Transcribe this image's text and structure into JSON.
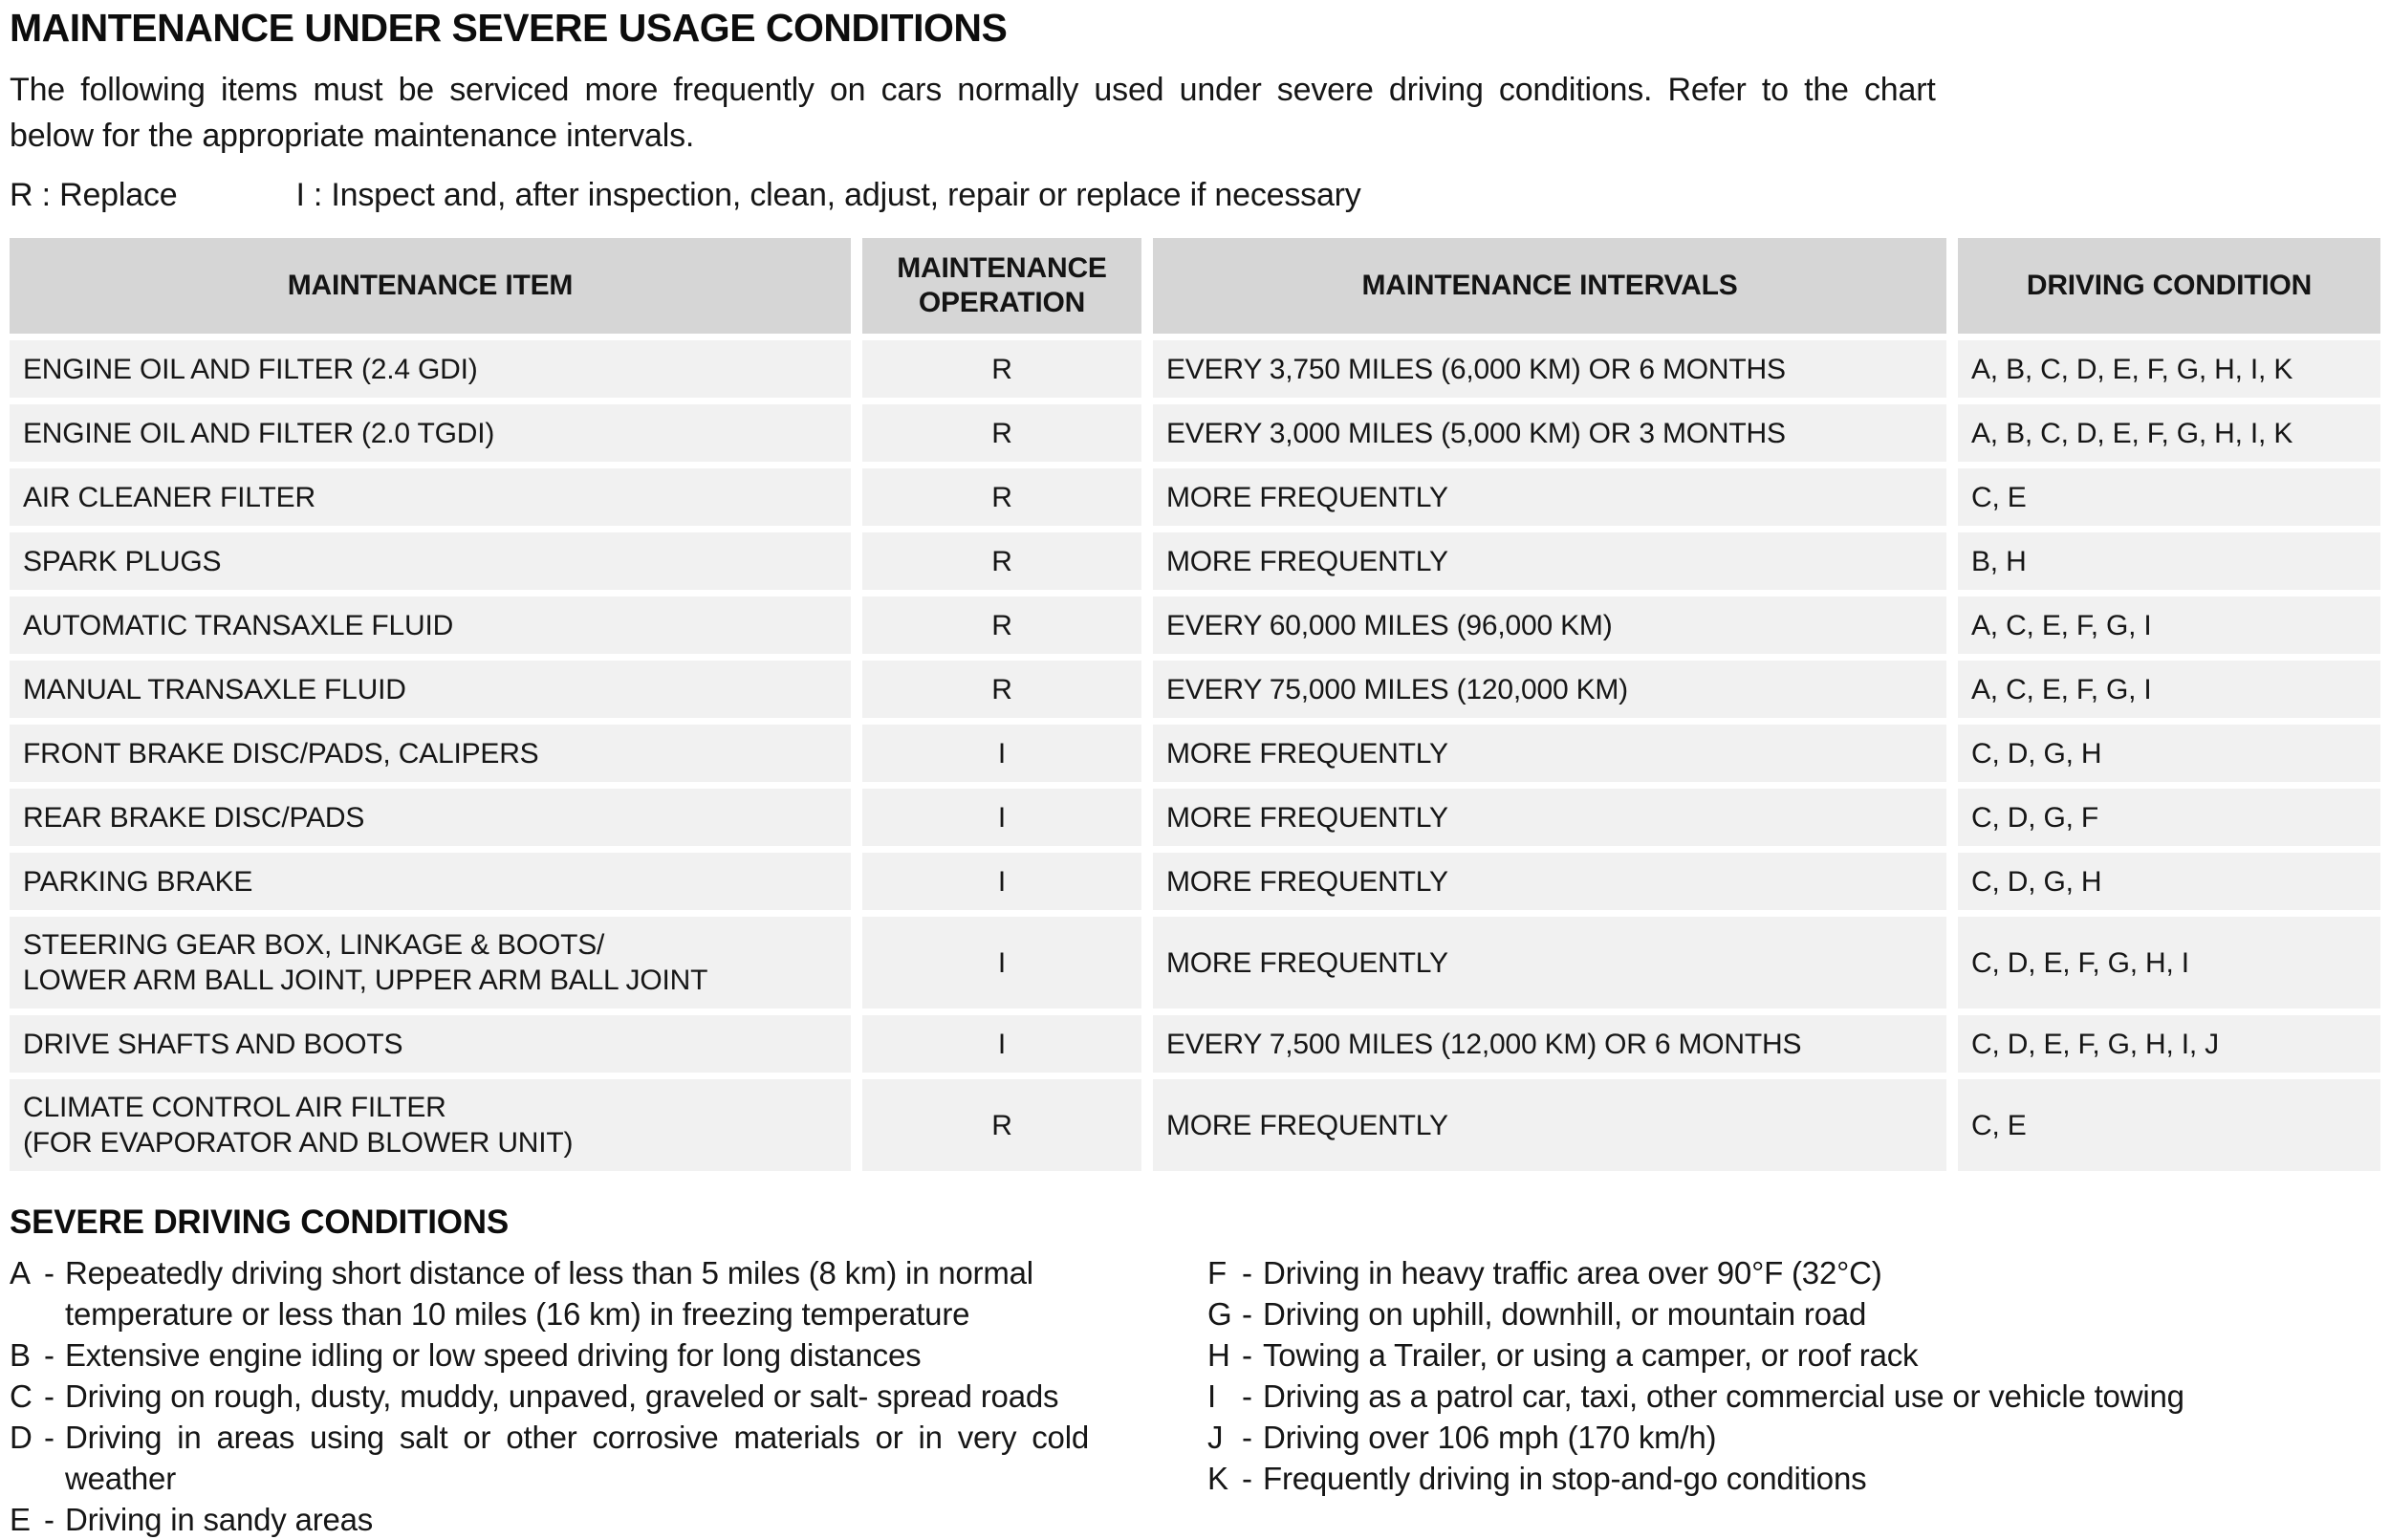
{
  "page": {
    "title": "MAINTENANCE UNDER SEVERE USAGE CONDITIONS",
    "intro_line1": "The following items must be serviced more frequently on cars normally used under severe driving conditions. Refer to the chart",
    "intro_line2": "below for the appropriate maintenance intervals.",
    "legend_replace": "R : Replace",
    "legend_inspect": "I : Inspect and, after inspection, clean, adjust, repair or replace if necessary"
  },
  "colors": {
    "page_background": "#ffffff",
    "table_header_background": "#d6d6d6",
    "table_row_background": "#f1f1f1",
    "text": "#111111"
  },
  "table": {
    "headers": [
      "MAINTENANCE ITEM",
      "MAINTENANCE OPERATION",
      "MAINTENANCE INTERVALS",
      "DRIVING CONDITION"
    ],
    "rows": [
      {
        "item": "ENGINE OIL AND FILTER (2.4 GDI)",
        "operation": "R",
        "interval": "EVERY 3,750 MILES (6,000 KM) OR 6 MONTHS",
        "condition": "A, B, C, D, E, F, G, H, I, K"
      },
      {
        "item": "ENGINE OIL AND FILTER (2.0 TGDI)",
        "operation": "R",
        "interval": "EVERY 3,000 MILES (5,000 KM) OR 3 MONTHS",
        "condition": "A, B, C, D, E, F, G, H, I, K"
      },
      {
        "item": "AIR CLEANER FILTER",
        "operation": "R",
        "interval": "MORE FREQUENTLY",
        "condition": "C, E"
      },
      {
        "item": "SPARK PLUGS",
        "operation": "R",
        "interval": "MORE FREQUENTLY",
        "condition": "B, H"
      },
      {
        "item": "AUTOMATIC TRANSAXLE FLUID",
        "operation": "R",
        "interval": "EVERY 60,000 MILES (96,000 KM)",
        "condition": "A, C, E, F, G, I"
      },
      {
        "item": "MANUAL TRANSAXLE FLUID",
        "operation": "R",
        "interval": "EVERY 75,000 MILES (120,000 KM)",
        "condition": "A, C, E, F, G, I"
      },
      {
        "item": "FRONT BRAKE DISC/PADS, CALIPERS",
        "operation": "I",
        "interval": "MORE FREQUENTLY",
        "condition": "C, D, G, H"
      },
      {
        "item": "REAR BRAKE DISC/PADS",
        "operation": "I",
        "interval": "MORE FREQUENTLY",
        "condition": "C, D, G, F"
      },
      {
        "item": "PARKING BRAKE",
        "operation": "I",
        "interval": "MORE FREQUENTLY",
        "condition": "C, D, G, H"
      },
      {
        "item": "STEERING GEAR BOX, LINKAGE & BOOTS/\nLOWER ARM BALL JOINT, UPPER ARM BALL JOINT",
        "operation": "I",
        "interval": "MORE FREQUENTLY",
        "condition": "C, D, E, F, G, H, I"
      },
      {
        "item": "DRIVE SHAFTS AND BOOTS",
        "operation": "I",
        "interval": "EVERY 7,500 MILES (12,000 KM) OR 6 MONTHS",
        "condition": "C, D, E, F, G, H, I, J"
      },
      {
        "item": "CLIMATE CONTROL AIR FILTER\n(FOR EVAPORATOR AND BLOWER UNIT)",
        "operation": "R",
        "interval": "MORE FREQUENTLY",
        "condition": "C, E"
      }
    ]
  },
  "conditions": {
    "heading": "SEVERE DRIVING CONDITIONS",
    "separator": "-",
    "left": [
      {
        "letter": "A",
        "text": "Repeatedly driving short distance of less than 5 miles (8 km) in normal\ntemperature or less than 10 miles (16 km) in freezing temperature"
      },
      {
        "letter": "B",
        "text": "Extensive engine idling or low speed driving for long distances"
      },
      {
        "letter": "C",
        "text": "Driving on rough, dusty, muddy, unpaved, graveled or salt- spread roads"
      },
      {
        "letter": "D",
        "text": "Driving in areas using salt or other corrosive materials or in very cold\nweather"
      },
      {
        "letter": "E",
        "text": "Driving in sandy areas"
      }
    ],
    "right": [
      {
        "letter": "F",
        "text": "Driving in heavy traffic area over 90°F (32°C)"
      },
      {
        "letter": "G",
        "text": "Driving on uphill, downhill, or mountain road"
      },
      {
        "letter": "H",
        "text": "Towing a Trailer, or using a camper, or roof rack"
      },
      {
        "letter": "I",
        "text": "Driving as a patrol car, taxi, other commercial use or vehicle towing"
      },
      {
        "letter": "J",
        "text": "Driving over 106 mph (170 km/h)"
      },
      {
        "letter": "K",
        "text": "Frequently driving in stop-and-go conditions"
      }
    ]
  }
}
